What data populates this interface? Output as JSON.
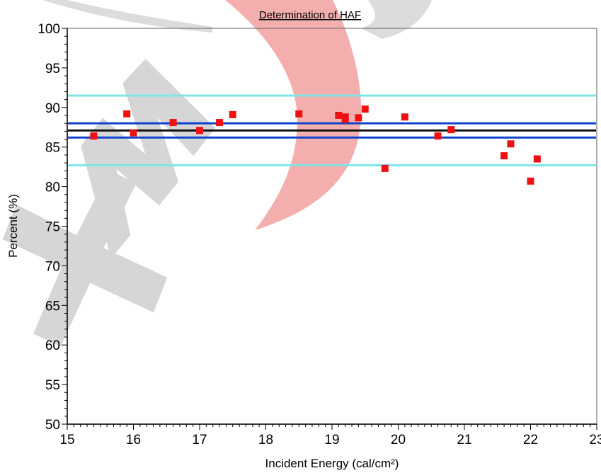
{
  "chart_data": {
    "type": "scatter",
    "title": "Determination of HAF",
    "xlabel": "Incident Energy (cal/cm²)",
    "ylabel": "Percent (%)",
    "xlim": [
      15,
      23
    ],
    "ylim": [
      50,
      100
    ],
    "x_ticks": [
      15,
      16,
      17,
      18,
      19,
      20,
      21,
      22,
      23
    ],
    "y_ticks": [
      50,
      55,
      60,
      65,
      70,
      75,
      80,
      85,
      90,
      95,
      100
    ],
    "grid": false,
    "series": [
      {
        "color": "#ee1111",
        "marker": "square",
        "points": [
          [
            15.4,
            86.4
          ],
          [
            15.9,
            89.2
          ],
          [
            16.0,
            86.8
          ],
          [
            16.6,
            88.1
          ],
          [
            17.0,
            87.1
          ],
          [
            17.3,
            88.1
          ],
          [
            17.5,
            89.1
          ],
          [
            18.5,
            89.2
          ],
          [
            19.1,
            89.0
          ],
          [
            19.2,
            88.8
          ],
          [
            19.2,
            88.5
          ],
          [
            19.4,
            88.7
          ],
          [
            19.5,
            89.8
          ],
          [
            19.8,
            82.3
          ],
          [
            20.1,
            88.8
          ],
          [
            20.6,
            86.4
          ],
          [
            20.8,
            87.2
          ],
          [
            21.6,
            83.9
          ],
          [
            21.7,
            85.4
          ],
          [
            22.0,
            80.7
          ],
          [
            22.1,
            83.5
          ]
        ]
      }
    ],
    "reference_lines": [
      {
        "y": 91.5,
        "color": "#7fe5e5",
        "width": 3
      },
      {
        "y": 88.0,
        "color": "#1144cc",
        "width": 3
      },
      {
        "y": 87.1,
        "color": "#111111",
        "width": 3
      },
      {
        "y": 86.2,
        "color": "#1144cc",
        "width": 3
      },
      {
        "y": 82.7,
        "color": "#7fe5e5",
        "width": 3
      }
    ],
    "watermark": {
      "text": "XM",
      "colors": [
        "#c8c8c8",
        "#f4a6a6"
      ]
    }
  }
}
